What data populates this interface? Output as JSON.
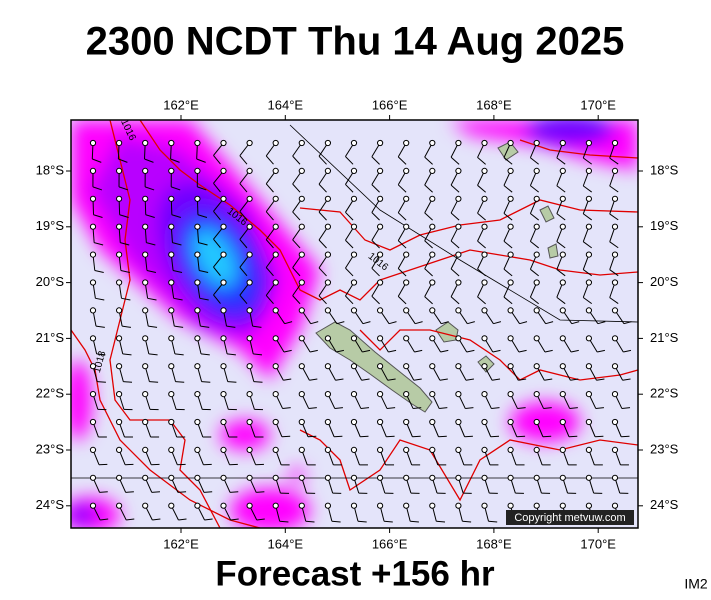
{
  "title": "2300 NCDT Thu 14 Aug 2025",
  "footer": "Forecast +156 hr",
  "corner_label": "IM2",
  "copyright": "Copyright metvuw.com",
  "lon_labels": [
    "162°E",
    "164°E",
    "166°E",
    "168°E",
    "170°E"
  ],
  "lat_labels": [
    "18°S",
    "19°S",
    "20°S",
    "21°S",
    "22°S",
    "23°S",
    "24°S"
  ],
  "isobar_labels": [
    "1016",
    "1016",
    "1016",
    "1018"
  ]
}
